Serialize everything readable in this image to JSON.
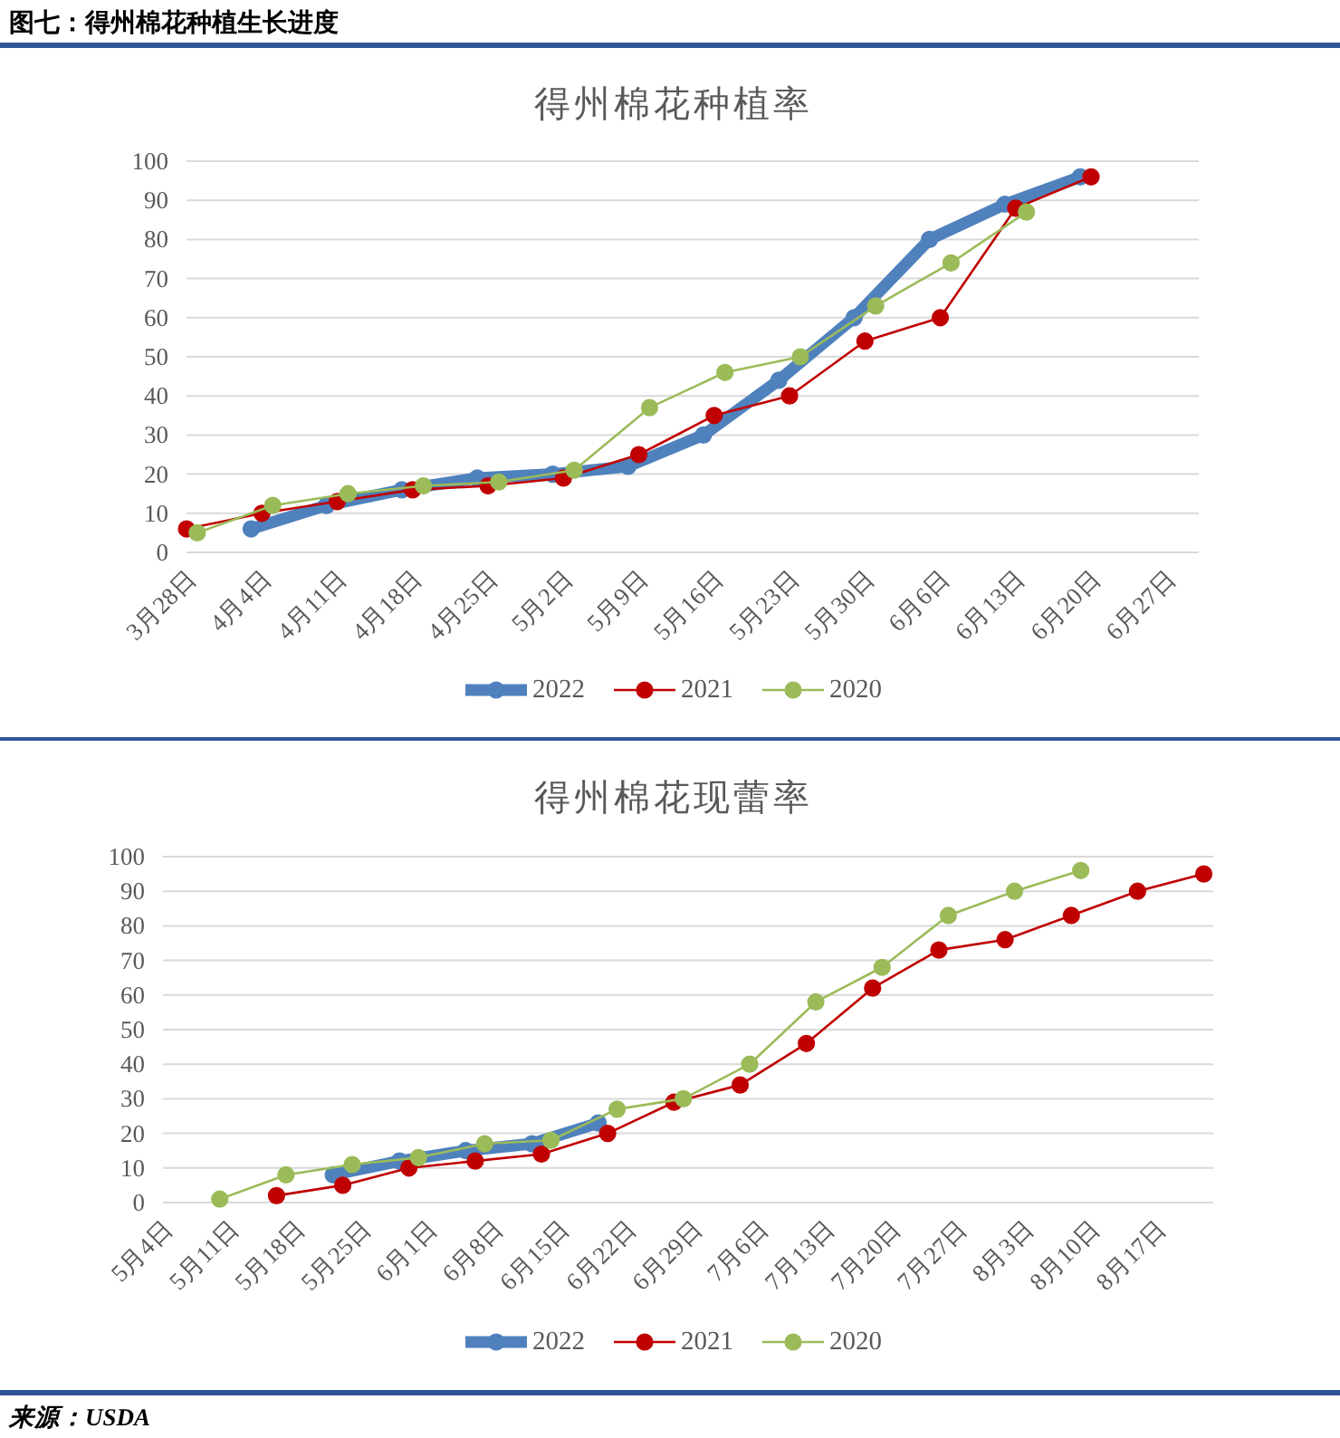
{
  "chart_data": [
    {
      "type": "line",
      "title": "得州棉花种植率",
      "annotations": [
        "图七：得州棉花种植生长进度"
      ],
      "series": [
        {
          "name": "2022",
          "color": "#4f81bd",
          "x": [
            "--04-03",
            "--04-10",
            "--04-17",
            "--04-24",
            "--05-01",
            "--05-08",
            "--05-15",
            "--05-22",
            "--05-29",
            "--06-05",
            "--06-12",
            "--06-19"
          ],
          "values": [
            6,
            12,
            16,
            19,
            20,
            22,
            30,
            44,
            60,
            80,
            89,
            96
          ]
        },
        {
          "name": "2021",
          "color": "#c00000",
          "x": [
            "--03-28",
            "--04-04",
            "--04-11",
            "--04-18",
            "--04-25",
            "--05-02",
            "--05-09",
            "--05-16",
            "--05-23",
            "--05-30",
            "--06-06",
            "--06-13",
            "--06-20"
          ],
          "values": [
            6,
            10,
            13,
            16,
            17,
            19,
            25,
            35,
            40,
            54,
            60,
            88,
            96
          ]
        },
        {
          "name": "2020",
          "color": "#9bbb59",
          "x": [
            "--03-29",
            "--04-05",
            "--04-12",
            "--04-19",
            "--04-26",
            "--05-03",
            "--05-10",
            "--05-17",
            "--05-24",
            "--05-31",
            "--06-07",
            "--06-14"
          ],
          "values": [
            5,
            12,
            15,
            17,
            18,
            21,
            37,
            46,
            50,
            63,
            74,
            87
          ]
        }
      ],
      "xlim": [
        "--03-28",
        "--06-30"
      ],
      "xticks": [
        {
          "value": "--03-28",
          "label": "3月28日"
        },
        {
          "value": "--04-04",
          "label": "4月4日"
        },
        {
          "value": "--04-11",
          "label": "4月11日"
        },
        {
          "value": "--04-18",
          "label": "4月18日"
        },
        {
          "value": "--04-25",
          "label": "4月25日"
        },
        {
          "value": "--05-02",
          "label": "5月2日"
        },
        {
          "value": "--05-09",
          "label": "5月9日"
        },
        {
          "value": "--05-16",
          "label": "5月16日"
        },
        {
          "value": "--05-23",
          "label": "5月23日"
        },
        {
          "value": "--05-30",
          "label": "5月30日"
        },
        {
          "value": "--06-06",
          "label": "6月6日"
        },
        {
          "value": "--06-13",
          "label": "6月13日"
        },
        {
          "value": "--06-20",
          "label": "6月20日"
        },
        {
          "value": "--06-27",
          "label": "6月27日"
        }
      ],
      "ylim": [
        0,
        100
      ],
      "yticks": [
        0,
        10,
        20,
        30,
        40,
        50,
        60,
        70,
        80,
        90,
        100
      ],
      "grid": "y",
      "legend": "bottom",
      "marker": "circle",
      "line_style": "solid"
    },
    {
      "type": "line",
      "title": "得州棉花现蕾率",
      "annotations": [
        "来源：USDA"
      ],
      "series": [
        {
          "name": "2022",
          "color": "#4f81bd",
          "x": [
            "--05-22",
            "--05-29",
            "--06-05",
            "--06-12",
            "--06-19"
          ],
          "values": [
            8,
            12,
            15,
            17,
            23
          ]
        },
        {
          "name": "2021",
          "color": "#c00000",
          "x": [
            "--05-16",
            "--05-23",
            "--05-30",
            "--06-06",
            "--06-13",
            "--06-20",
            "--06-27",
            "--07-04",
            "--07-11",
            "--07-18",
            "--07-25",
            "--08-01",
            "--08-08",
            "--08-15",
            "--08-22"
          ],
          "values": [
            2,
            5,
            10,
            12,
            14,
            20,
            29,
            34,
            46,
            62,
            73,
            76,
            83,
            90,
            95
          ]
        },
        {
          "name": "2020",
          "color": "#9bbb59",
          "x": [
            "--05-10",
            "--05-17",
            "--05-24",
            "--05-31",
            "--06-07",
            "--06-14",
            "--06-21",
            "--06-28",
            "--07-05",
            "--07-12",
            "--07-19",
            "--07-26",
            "--08-02",
            "--08-09"
          ],
          "values": [
            1,
            8,
            11,
            13,
            17,
            18,
            27,
            30,
            40,
            58,
            68,
            83,
            90,
            96
          ]
        }
      ],
      "xlim": [
        "--05-04",
        "--08-23"
      ],
      "xticks": [
        {
          "value": "--05-04",
          "label": "5月4日"
        },
        {
          "value": "--05-11",
          "label": "5月11日"
        },
        {
          "value": "--05-18",
          "label": "5月18日"
        },
        {
          "value": "--05-25",
          "label": "5月25日"
        },
        {
          "value": "--06-01",
          "label": "6月1日"
        },
        {
          "value": "--06-08",
          "label": "6月8日"
        },
        {
          "value": "--06-15",
          "label": "6月15日"
        },
        {
          "value": "--06-22",
          "label": "6月22日"
        },
        {
          "value": "--06-29",
          "label": "6月29日"
        },
        {
          "value": "--07-06",
          "label": "7月6日"
        },
        {
          "value": "--07-13",
          "label": "7月13日"
        },
        {
          "value": "--07-20",
          "label": "7月20日"
        },
        {
          "value": "--07-27",
          "label": "7月27日"
        },
        {
          "value": "--08-03",
          "label": "8月3日"
        },
        {
          "value": "--08-10",
          "label": "8月10日"
        },
        {
          "value": "--08-17",
          "label": "8月17日"
        }
      ],
      "ylim": [
        0,
        100
      ],
      "yticks": [
        0,
        10,
        20,
        30,
        40,
        50,
        60,
        70,
        80,
        90,
        100
      ],
      "grid": "y",
      "legend": "bottom",
      "marker": "circle",
      "line_style": "solid"
    }
  ]
}
